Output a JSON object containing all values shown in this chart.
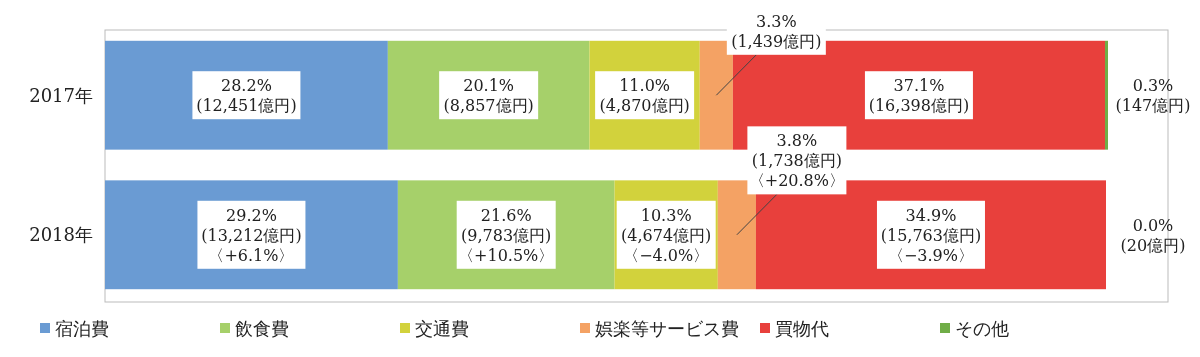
{
  "chart_data": {
    "type": "bar",
    "orientation": "horizontal",
    "stacked": true,
    "categories": [
      "2017年",
      "2018年"
    ],
    "legend": "bottom",
    "series": [
      {
        "name": "宿泊費",
        "color": "#6a9bd3",
        "values": [
          28.2,
          29.2
        ],
        "value_labels": [
          "28.2%\n(12,451億円)",
          "29.2%\n(13,212億円)\n〈+6.1%〉"
        ]
      },
      {
        "name": "飲食費",
        "color": "#a6d06a",
        "values": [
          20.1,
          21.6
        ],
        "value_labels": [
          "20.1%\n(8,857億円)",
          "21.6%\n(9,783億円)\n〈+10.5%〉"
        ]
      },
      {
        "name": "交通費",
        "color": "#d2d23c",
        "values": [
          11.0,
          10.3
        ],
        "value_labels": [
          "11.0%\n(4,870億円)",
          "10.3%\n(4,674億円)\n〈−4.0%〉"
        ]
      },
      {
        "name": "娯楽等サービス費",
        "color": "#f4a264",
        "values": [
          3.3,
          3.8
        ],
        "value_labels": [
          "3.3%\n(1,439億円)",
          "3.8%\n(1,738億円)\n〈+20.8%〉"
        ]
      },
      {
        "name": "買物代",
        "color": "#e8403c",
        "values": [
          37.1,
          34.9
        ],
        "value_labels": [
          "37.1%\n(16,398億円)",
          "34.9%\n(15,763億円)\n〈−3.9%〉"
        ]
      },
      {
        "name": "その他",
        "color": "#70ad47",
        "values": [
          0.3,
          0.0
        ],
        "value_labels": [
          "0.3%\n(147億円)",
          "0.0%\n(20億円)"
        ]
      }
    ]
  }
}
